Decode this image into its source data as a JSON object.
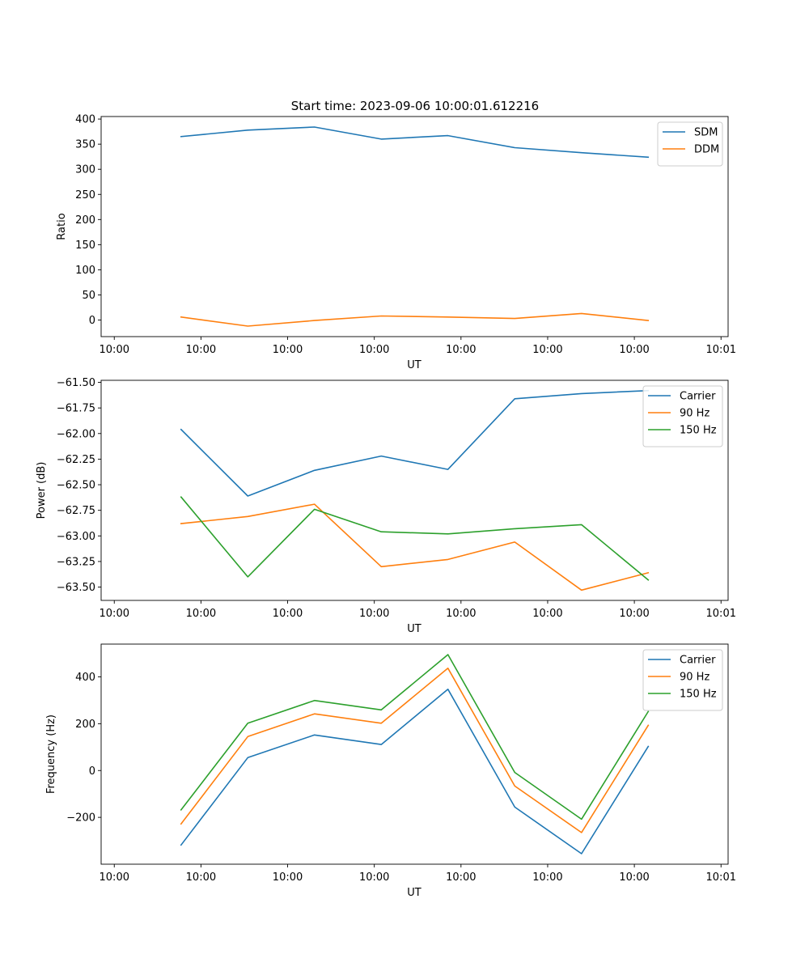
{
  "figure": {
    "title": "Start time: 2023-09-06 10:00:01.612216"
  },
  "chart_data": [
    {
      "type": "line",
      "title": "Start time: 2023-09-06 10:00:01.612216",
      "xlabel": "UT",
      "ylabel": "Ratio",
      "x_ticks": [
        "10:00",
        "10:00",
        "10:00",
        "10:00",
        "10:00",
        "10:00",
        "10:00",
        "10:01"
      ],
      "x": [
        0.66,
        1.32,
        1.98,
        2.64,
        3.3,
        3.96,
        4.62,
        5.28
      ],
      "xlim": [
        -0.13,
        6.07
      ],
      "ylim": [
        -33,
        405
      ],
      "y_ticks": [
        400,
        350,
        300,
        250,
        200,
        150,
        100,
        50,
        0
      ],
      "y_tick_labels": [
        "400",
        "350",
        "300",
        "250",
        "200",
        "150",
        "100",
        "50",
        "0"
      ],
      "legend": "top-right",
      "series": [
        {
          "name": "SDM",
          "color": "#1f77b4",
          "values": [
            365,
            378,
            384,
            360,
            367,
            343,
            333,
            324
          ]
        },
        {
          "name": "DDM",
          "color": "#ff7f0e",
          "values": [
            6,
            -12,
            -1,
            8,
            6,
            3,
            13,
            -1
          ]
        }
      ]
    },
    {
      "type": "line",
      "xlabel": "UT",
      "ylabel": "Power (dB)",
      "x_ticks": [
        "10:00",
        "10:00",
        "10:00",
        "10:00",
        "10:00",
        "10:00",
        "10:00",
        "10:01"
      ],
      "x": [
        0.66,
        1.32,
        1.98,
        2.64,
        3.3,
        3.96,
        4.62,
        5.28
      ],
      "xlim": [
        -0.13,
        6.07
      ],
      "ylim": [
        -63.63,
        -61.48
      ],
      "y_ticks": [
        -61.5,
        -61.75,
        -62.0,
        -62.25,
        -62.5,
        -62.75,
        -63.0,
        -63.25,
        -63.5
      ],
      "y_tick_labels": [
        "−61.50",
        "−61.75",
        "−62.00",
        "−62.25",
        "−62.50",
        "−62.75",
        "−63.00",
        "−63.25",
        "−63.50"
      ],
      "legend": "top-right",
      "series": [
        {
          "name": "Carrier",
          "color": "#1f77b4",
          "values": [
            -61.96,
            -62.61,
            -62.36,
            -62.22,
            -62.35,
            -61.66,
            -61.61,
            -61.58
          ]
        },
        {
          "name": "90 Hz",
          "color": "#ff7f0e",
          "values": [
            -62.88,
            -62.81,
            -62.69,
            -63.3,
            -63.23,
            -63.06,
            -63.53,
            -63.36
          ]
        },
        {
          "name": "150 Hz",
          "color": "#2ca02c",
          "values": [
            -62.62,
            -63.4,
            -62.74,
            -62.96,
            -62.98,
            -62.93,
            -62.89,
            -63.43
          ]
        }
      ]
    },
    {
      "type": "line",
      "xlabel": "UT",
      "ylabel": "Frequency (Hz)",
      "x_ticks": [
        "10:00",
        "10:00",
        "10:00",
        "10:00",
        "10:00",
        "10:00",
        "10:00",
        "10:01"
      ],
      "x": [
        0.66,
        1.32,
        1.98,
        2.64,
        3.3,
        3.96,
        4.62,
        5.28
      ],
      "xlim": [
        -0.13,
        6.07
      ],
      "ylim": [
        -400,
        540
      ],
      "y_ticks": [
        400,
        200,
        0,
        -200
      ],
      "y_tick_labels": [
        "400",
        "200",
        "0",
        "−200"
      ],
      "legend": "top-right",
      "series": [
        {
          "name": "Carrier",
          "color": "#1f77b4",
          "values": [
            -318,
            55,
            152,
            111,
            347,
            -156,
            -355,
            103
          ]
        },
        {
          "name": "90 Hz",
          "color": "#ff7f0e",
          "values": [
            -228,
            145,
            242,
            202,
            437,
            -66,
            -265,
            193
          ]
        },
        {
          "name": "150 Hz",
          "color": "#2ca02c",
          "values": [
            -168,
            202,
            299,
            259,
            495,
            -8,
            -208,
            252
          ]
        }
      ]
    }
  ]
}
